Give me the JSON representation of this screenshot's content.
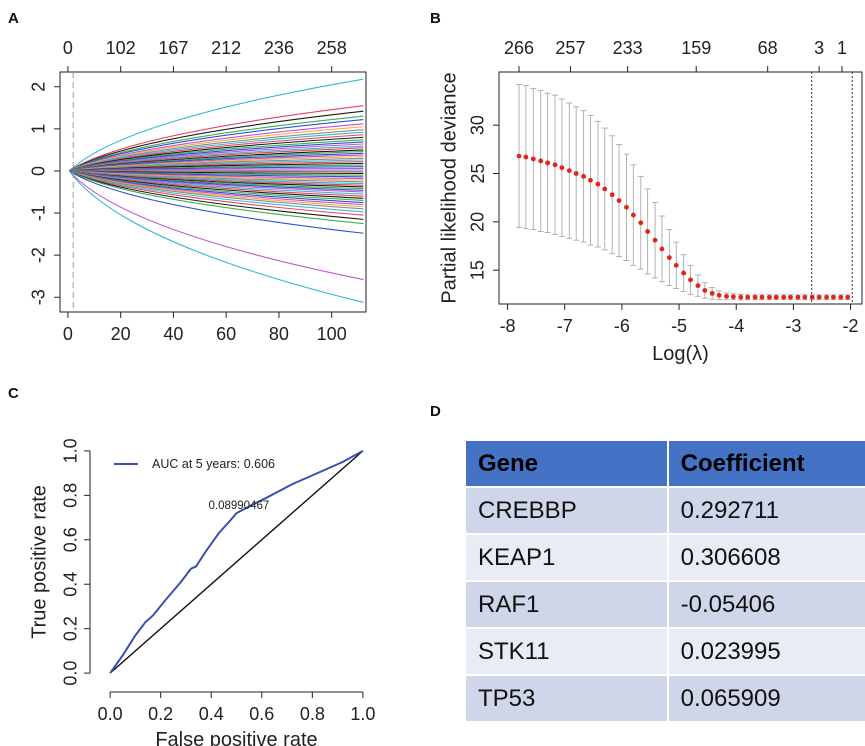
{
  "panels": {
    "a": "A",
    "b": "B",
    "c": "C",
    "d": "D"
  },
  "chart_data": [
    {
      "panel": "A",
      "type": "line",
      "xlim": [
        -3,
        113
      ],
      "ylim": [
        -3.35,
        2.35
      ],
      "x_ticks": [
        0,
        20,
        40,
        60,
        80,
        100
      ],
      "y_ticks": [
        -3,
        -2,
        -1,
        0,
        1,
        2
      ],
      "top_ticks": [
        {
          "x": 0,
          "label": "0"
        },
        {
          "x": 20,
          "label": "102"
        },
        {
          "x": 40,
          "label": "167"
        },
        {
          "x": 60,
          "label": "212"
        },
        {
          "x": 80,
          "label": "236"
        },
        {
          "x": 100,
          "label": "258"
        }
      ],
      "vline_x": 2,
      "x_start": 0.5,
      "x_end": 112,
      "series_end_values": [
        2.18,
        1.55,
        1.42,
        1.3,
        1.22,
        1.12,
        1.05,
        0.98,
        0.92,
        0.86,
        0.8,
        0.74,
        0.69,
        0.64,
        0.59,
        0.55,
        0.5,
        0.46,
        0.42,
        0.38,
        0.34,
        0.3,
        0.26,
        0.22,
        0.18,
        0.14,
        0.1,
        0.06,
        0.02,
        -0.02,
        -0.06,
        -0.1,
        -0.14,
        -0.18,
        -0.22,
        -0.26,
        -0.3,
        -0.34,
        -0.38,
        -0.42,
        -0.46,
        -0.5,
        -0.55,
        -0.6,
        -0.65,
        -0.7,
        -0.75,
        -0.8,
        -0.85,
        -0.9,
        -0.97,
        -1.05,
        -1.15,
        -1.25,
        -1.48,
        -2.58,
        -3.12
      ],
      "colors": [
        "#35b9d6",
        "#e8435a",
        "#1a1a1a",
        "#3fae49",
        "#2f50d6",
        "#c84fd1",
        "#f0b040",
        "#8a8a8a",
        "#35b9d6",
        "#e8435a",
        "#1a1a1a",
        "#3fae49",
        "#2f50d6",
        "#c84fd1"
      ]
    },
    {
      "panel": "B",
      "type": "scatter",
      "xlabel": "Log(λ)",
      "ylabel": "Partial likelihood deviance",
      "xlim": [
        -8.15,
        -1.8
      ],
      "ylim": [
        11.5,
        35.5
      ],
      "x_ticks": [
        -8,
        -7,
        -6,
        -5,
        -4,
        -3,
        -2
      ],
      "y_ticks": [
        15,
        20,
        25,
        30
      ],
      "top_ticks": [
        {
          "x": -7.8,
          "label": "266"
        },
        {
          "x": -6.9,
          "label": "257"
        },
        {
          "x": -5.9,
          "label": "233"
        },
        {
          "x": -4.7,
          "label": "159"
        },
        {
          "x": -3.45,
          "label": "68"
        },
        {
          "x": -2.55,
          "label": "3"
        },
        {
          "x": -2.15,
          "label": "1"
        }
      ],
      "vlines_x": [
        -2.68,
        -1.97
      ],
      "x": [
        -7.8,
        -7.68,
        -7.55,
        -7.42,
        -7.3,
        -7.17,
        -7.05,
        -6.92,
        -6.8,
        -6.67,
        -6.55,
        -6.42,
        -6.3,
        -6.17,
        -6.05,
        -5.92,
        -5.8,
        -5.67,
        -5.55,
        -5.42,
        -5.3,
        -5.17,
        -5.05,
        -4.92,
        -4.8,
        -4.67,
        -4.55,
        -4.42,
        -4.3,
        -4.17,
        -4.05,
        -3.92,
        -3.8,
        -3.67,
        -3.55,
        -3.42,
        -3.3,
        -3.17,
        -3.05,
        -2.92,
        -2.8,
        -2.67,
        -2.55,
        -2.42,
        -2.3,
        -2.17,
        -2.05
      ],
      "y": [
        26.8,
        26.7,
        26.5,
        26.3,
        26.1,
        25.9,
        25.6,
        25.3,
        25.0,
        24.7,
        24.3,
        23.9,
        23.4,
        22.8,
        22.2,
        21.5,
        20.7,
        19.9,
        19.0,
        18.1,
        17.2,
        16.3,
        15.5,
        14.7,
        14.0,
        13.4,
        12.9,
        12.6,
        12.4,
        12.3,
        12.25,
        12.2,
        12.2,
        12.2,
        12.2,
        12.2,
        12.2,
        12.2,
        12.2,
        12.2,
        12.2,
        12.2,
        12.2,
        12.2,
        12.2,
        12.2,
        12.2
      ],
      "err": [
        7.4,
        7.4,
        7.3,
        7.3,
        7.2,
        7.2,
        7.1,
        7.0,
        6.9,
        6.8,
        6.7,
        6.5,
        6.3,
        6.1,
        5.8,
        5.5,
        5.2,
        4.8,
        4.4,
        3.9,
        3.4,
        2.9,
        2.4,
        1.9,
        1.5,
        1.1,
        0.8,
        0.6,
        0.45,
        0.35,
        0.3,
        0.28,
        0.25,
        0.25,
        0.25,
        0.25,
        0.25,
        0.25,
        0.25,
        0.25,
        0.25,
        0.25,
        0.25,
        0.25,
        0.25,
        0.25,
        0.25
      ]
    },
    {
      "panel": "C",
      "type": "line",
      "xlabel": "False positive rate",
      "ylabel": "True positive rate",
      "xlim": [
        -0.04,
        1.04
      ],
      "ylim": [
        -0.04,
        1.04
      ],
      "x_ticks": [
        0.0,
        0.2,
        0.4,
        0.6,
        0.8,
        1.0
      ],
      "y_ticks": [
        0.0,
        0.2,
        0.4,
        0.6,
        0.8,
        1.0
      ],
      "tick_labels": [
        "0.0",
        "0.2",
        "0.4",
        "0.6",
        "0.8",
        "1.0"
      ],
      "legend": "AUC at 5 years: 0.606",
      "annotation": "0.08990467",
      "annotation_point": [
        0.5,
        0.72
      ],
      "roc_x": [
        0.0,
        0.05,
        0.1,
        0.14,
        0.17,
        0.22,
        0.28,
        0.32,
        0.34,
        0.38,
        0.43,
        0.47,
        0.5,
        0.55,
        0.62,
        0.72,
        0.82,
        0.92,
        1.0
      ],
      "roc_y": [
        0.0,
        0.08,
        0.17,
        0.23,
        0.26,
        0.33,
        0.41,
        0.47,
        0.48,
        0.55,
        0.63,
        0.68,
        0.72,
        0.75,
        0.79,
        0.85,
        0.9,
        0.95,
        1.0
      ],
      "roc_color": "#3a4fb0"
    }
  ],
  "table": {
    "headers": [
      "Gene",
      "Coefficient"
    ],
    "rows": [
      [
        "CREBBP",
        "0.292711"
      ],
      [
        "KEAP1",
        "0.306608"
      ],
      [
        "RAF1",
        "-0.05406"
      ],
      [
        "STK11",
        "0.023995"
      ],
      [
        "TP53",
        "0.065909"
      ]
    ],
    "header_color": "#4472c4",
    "row_colors": [
      "#cfd6ea",
      "#e9ecf5"
    ]
  }
}
